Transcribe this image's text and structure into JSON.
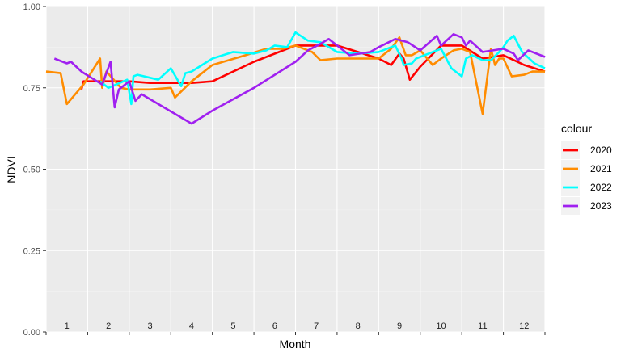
{
  "chart_data": {
    "type": "line",
    "xlabel": "Month",
    "ylabel": "NDVI",
    "ylim": [
      0,
      1
    ],
    "xlim": [
      0,
      12
    ],
    "yticks": [
      "0.00",
      "0.25",
      "0.50",
      "0.75",
      "1.00"
    ],
    "month_labels": [
      "1",
      "2",
      "3",
      "4",
      "5",
      "6",
      "7",
      "8",
      "9",
      "10",
      "11",
      "12"
    ],
    "grid": true,
    "legend": {
      "title": "colour",
      "position": "right"
    },
    "series": [
      {
        "name": "2020",
        "color": "#ff0000",
        "x": [
          0.85,
          0.9,
          1.3,
          2.0,
          2.5,
          3.0,
          3.5,
          4.0,
          5.0,
          6.0,
          7.0,
          7.5,
          8.0,
          8.3,
          8.5,
          8.6,
          8.75,
          9.0,
          9.5,
          10.0,
          10.5,
          11.0,
          11.5,
          12.0
        ],
        "y": [
          0.745,
          0.77,
          0.77,
          0.77,
          0.765,
          0.765,
          0.765,
          0.77,
          0.83,
          0.88,
          0.88,
          0.86,
          0.84,
          0.82,
          0.855,
          0.84,
          0.775,
          0.815,
          0.88,
          0.88,
          0.84,
          0.85,
          0.82,
          0.8
        ]
      },
      {
        "name": "2021",
        "color": "#ff8c00",
        "x": [
          0.0,
          0.35,
          0.5,
          0.9,
          1.3,
          1.35,
          1.45,
          1.8,
          2.0,
          2.5,
          3.0,
          3.1,
          3.5,
          4.0,
          4.8,
          5.3,
          5.7,
          6.0,
          6.4,
          6.6,
          7.0,
          7.5,
          8.0,
          8.3,
          8.5,
          8.65,
          8.8,
          9.0,
          9.3,
          9.5,
          9.8,
          10.0,
          10.2,
          10.5,
          10.7,
          10.8,
          10.9,
          11.0,
          11.2,
          11.5,
          11.7,
          11.9,
          12.0
        ],
        "y": [
          0.8,
          0.795,
          0.7,
          0.76,
          0.84,
          0.75,
          0.8,
          0.75,
          0.745,
          0.745,
          0.75,
          0.72,
          0.77,
          0.82,
          0.85,
          0.87,
          0.87,
          0.88,
          0.86,
          0.835,
          0.84,
          0.84,
          0.84,
          0.87,
          0.905,
          0.85,
          0.85,
          0.865,
          0.82,
          0.84,
          0.865,
          0.87,
          0.86,
          0.67,
          0.87,
          0.82,
          0.84,
          0.84,
          0.785,
          0.79,
          0.8,
          0.8,
          0.8
        ]
      },
      {
        "name": "2022",
        "color": "#00ffff",
        "x": [
          1.3,
          1.5,
          1.95,
          2.05,
          2.1,
          2.2,
          2.7,
          3.0,
          3.25,
          3.35,
          3.5,
          4.0,
          4.5,
          5.0,
          5.3,
          5.5,
          5.8,
          6.0,
          6.3,
          6.6,
          7.0,
          7.5,
          8.0,
          8.4,
          8.55,
          8.6,
          8.8,
          8.9,
          9.5,
          9.75,
          10.0,
          10.1,
          10.25,
          10.5,
          10.7,
          10.9,
          11.0,
          11.1,
          11.25,
          11.45,
          11.75,
          12.0
        ],
        "y": [
          0.77,
          0.75,
          0.775,
          0.7,
          0.785,
          0.79,
          0.775,
          0.81,
          0.755,
          0.795,
          0.8,
          0.84,
          0.86,
          0.855,
          0.865,
          0.88,
          0.875,
          0.92,
          0.895,
          0.89,
          0.86,
          0.855,
          0.86,
          0.88,
          0.84,
          0.82,
          0.825,
          0.84,
          0.87,
          0.81,
          0.785,
          0.84,
          0.85,
          0.835,
          0.835,
          0.86,
          0.875,
          0.895,
          0.91,
          0.86,
          0.825,
          0.81
        ]
      },
      {
        "name": "2023",
        "color": "#a020f0",
        "x": [
          0.2,
          0.5,
          0.6,
          0.85,
          1.35,
          1.55,
          1.65,
          1.75,
          2.0,
          2.15,
          2.3,
          3.5,
          4.0,
          5.0,
          6.0,
          6.3,
          6.6,
          6.8,
          7.3,
          7.8,
          8.0,
          8.4,
          8.7,
          9.0,
          9.4,
          9.5,
          9.8,
          10.0,
          10.1,
          10.2,
          10.5,
          11.0,
          11.25,
          11.35,
          11.6,
          12.0
        ],
        "y": [
          0.84,
          0.825,
          0.83,
          0.8,
          0.76,
          0.83,
          0.69,
          0.745,
          0.77,
          0.71,
          0.73,
          0.64,
          0.68,
          0.75,
          0.83,
          0.865,
          0.885,
          0.9,
          0.85,
          0.86,
          0.875,
          0.9,
          0.89,
          0.865,
          0.91,
          0.88,
          0.915,
          0.905,
          0.88,
          0.895,
          0.86,
          0.87,
          0.855,
          0.835,
          0.865,
          0.845
        ]
      }
    ]
  }
}
